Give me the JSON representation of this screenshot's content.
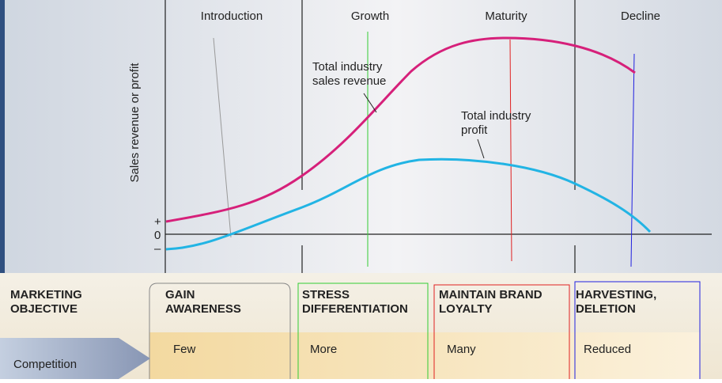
{
  "stages": [
    "Introduction",
    "Growth",
    "Maturity",
    "Decline"
  ],
  "y_axis_label": "Sales revenue or profit",
  "axis_markers": [
    "+",
    "0",
    "–"
  ],
  "curves": [
    {
      "label_lines": [
        "Total industry",
        "sales revenue"
      ]
    },
    {
      "label_lines": [
        "Total industry",
        "profit"
      ]
    }
  ],
  "table": {
    "row_header_lines": [
      "MARKETING",
      "OBJECTIVE"
    ],
    "objectives": [
      [
        "GAIN",
        "AWARENESS"
      ],
      [
        "STRESS",
        "DIFFERENTIATION"
      ],
      [
        "MAINTAIN BRAND",
        "LOYALTY"
      ],
      [
        "HARVESTING,",
        "DELETION"
      ]
    ],
    "competition_label": "Competition",
    "competition": [
      "Few",
      "More",
      "Many",
      "Reduced"
    ]
  }
}
